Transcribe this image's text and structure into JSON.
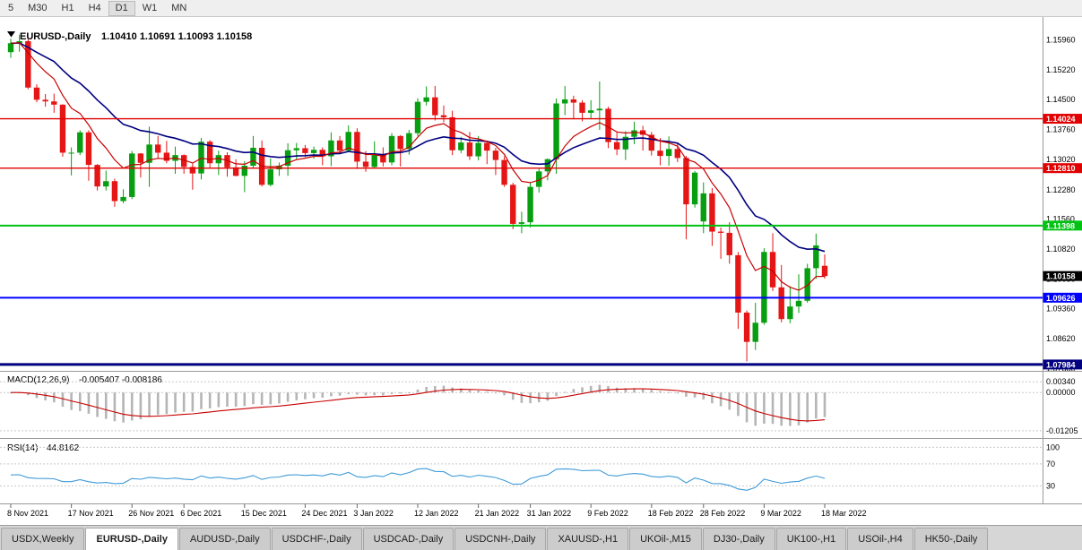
{
  "colors": {
    "bull": "#089e11",
    "bear": "#e51616",
    "border": "#9a9a9a",
    "grid": "#c9c9c9",
    "macd_bar": "#b5b5b5",
    "macd_signal": "#c80000",
    "rsi": "#3f9bd8"
  },
  "toolbar": {
    "timeframes": [
      {
        "label": "5",
        "active": false
      },
      {
        "label": "M30",
        "active": false
      },
      {
        "label": "H1",
        "active": false
      },
      {
        "label": "H4",
        "active": false
      },
      {
        "label": "D1",
        "active": true
      },
      {
        "label": "W1",
        "active": false
      },
      {
        "label": "MN",
        "active": false
      }
    ]
  },
  "chart": {
    "title": "EURUSD-,Daily",
    "ohlc": "1.10410 1.10691 1.10093 1.10158"
  },
  "chart_data": {
    "type": "candlestick",
    "symbol": "EURUSD-",
    "timeframe": "Daily",
    "ohlc_current": {
      "open": 1.1041,
      "high": 1.10691,
      "low": 1.10093,
      "close": 1.10158
    },
    "price_domain": [
      1.0785,
      1.1648
    ],
    "price_axis_ticks": [
      1.1596,
      1.1522,
      1.145,
      1.1376,
      1.1302,
      1.1228,
      1.1156,
      1.1082,
      1.1008,
      1.0936,
      1.0862,
      1.0788
    ],
    "hlines": [
      {
        "value": 1.14024,
        "label": "1.14024",
        "color": "#e00000",
        "width": 1.4
      },
      {
        "value": 1.1281,
        "label": "1.12810",
        "color": "#e00000",
        "width": 1.4
      },
      {
        "value": 1.11398,
        "label": "1.11398",
        "color": "#00c213",
        "width": 2
      },
      {
        "value": 1.09626,
        "label": "1.09626",
        "color": "#0000ff",
        "width": 2
      },
      {
        "value": 1.07984,
        "label": "1.07984",
        "color": "#000080",
        "width": 3
      }
    ],
    "current_price": {
      "value": 1.10158,
      "label": "1.10158",
      "color": "#000000"
    },
    "moving_averages": [
      {
        "name": "ma-fast",
        "period": 8,
        "color": "#c80000"
      },
      {
        "name": "ma-slow",
        "period": 20,
        "color": "#000080"
      }
    ],
    "date_labels": [
      {
        "label": "8 Nov 2021",
        "index": 0
      },
      {
        "label": "17 Nov 2021",
        "index": 7
      },
      {
        "label": "26 Nov 2021",
        "index": 14
      },
      {
        "label": "6 Dec 2021",
        "index": 20
      },
      {
        "label": "15 Dec 2021",
        "index": 27
      },
      {
        "label": "24 Dec 2021",
        "index": 34
      },
      {
        "label": "3 Jan 2022",
        "index": 40
      },
      {
        "label": "12 Jan 2022",
        "index": 47
      },
      {
        "label": "21 Jan 2022",
        "index": 54
      },
      {
        "label": "31 Jan 2022",
        "index": 60
      },
      {
        "label": "9 Feb 2022",
        "index": 67
      },
      {
        "label": "18 Feb 2022",
        "index": 74
      },
      {
        "label": "28 Feb 2022",
        "index": 80
      },
      {
        "label": "9 Mar 2022",
        "index": 87
      },
      {
        "label": "18 Mar 2022",
        "index": 94
      }
    ],
    "candles": [
      [
        1.1566,
        1.1599,
        1.1552,
        1.1588
      ],
      [
        1.1588,
        1.1609,
        1.1567,
        1.1593
      ],
      [
        1.1593,
        1.1598,
        1.1475,
        1.1479
      ],
      [
        1.1479,
        1.1487,
        1.1443,
        1.1449
      ],
      [
        1.1449,
        1.1463,
        1.1432,
        1.1445
      ],
      [
        1.1445,
        1.1464,
        1.1417,
        1.1437
      ],
      [
        1.1437,
        1.1438,
        1.1309,
        1.1319
      ],
      [
        1.1319,
        1.1332,
        1.1263,
        1.1319
      ],
      [
        1.1319,
        1.1374,
        1.1313,
        1.1369
      ],
      [
        1.1369,
        1.1374,
        1.125,
        1.1289
      ],
      [
        1.1289,
        1.1291,
        1.1226,
        1.1236
      ],
      [
        1.1236,
        1.1275,
        1.1226,
        1.1249
      ],
      [
        1.1249,
        1.1255,
        1.1186,
        1.12
      ],
      [
        1.12,
        1.1229,
        1.1195,
        1.121
      ],
      [
        1.121,
        1.1323,
        1.1205,
        1.1317
      ],
      [
        1.1317,
        1.1318,
        1.1258,
        1.1294
      ],
      [
        1.1294,
        1.1383,
        1.1235,
        1.1339
      ],
      [
        1.1339,
        1.136,
        1.1305,
        1.1319
      ],
      [
        1.1319,
        1.1348,
        1.1293,
        1.1299
      ],
      [
        1.1299,
        1.1334,
        1.1267,
        1.1313
      ],
      [
        1.1313,
        1.1315,
        1.1267,
        1.1284
      ],
      [
        1.1284,
        1.1292,
        1.1228,
        1.1268
      ],
      [
        1.1268,
        1.1355,
        1.1253,
        1.1346
      ],
      [
        1.1346,
        1.135,
        1.128,
        1.1293
      ],
      [
        1.1293,
        1.1324,
        1.1264,
        1.1313
      ],
      [
        1.1313,
        1.132,
        1.126,
        1.1283
      ],
      [
        1.1283,
        1.1303,
        1.1261,
        1.1262
      ],
      [
        1.1262,
        1.1298,
        1.1222,
        1.1287
      ],
      [
        1.1287,
        1.136,
        1.128,
        1.1331
      ],
      [
        1.1331,
        1.1349,
        1.1236,
        1.124
      ],
      [
        1.124,
        1.1305,
        1.1236,
        1.1278
      ],
      [
        1.1278,
        1.1295,
        1.1262,
        1.1287
      ],
      [
        1.1287,
        1.1342,
        1.1262,
        1.1325
      ],
      [
        1.1325,
        1.1343,
        1.1303,
        1.133
      ],
      [
        1.133,
        1.1338,
        1.1308,
        1.1318
      ],
      [
        1.1318,
        1.1334,
        1.1304,
        1.1326
      ],
      [
        1.1326,
        1.1332,
        1.1288,
        1.131
      ],
      [
        1.131,
        1.1369,
        1.1286,
        1.1349
      ],
      [
        1.1349,
        1.136,
        1.1315,
        1.1324
      ],
      [
        1.1324,
        1.1386,
        1.132,
        1.137
      ],
      [
        1.137,
        1.1379,
        1.1279,
        1.1297
      ],
      [
        1.1297,
        1.1323,
        1.1272,
        1.1284
      ],
      [
        1.1284,
        1.1347,
        1.1281,
        1.1313
      ],
      [
        1.1313,
        1.1332,
        1.1285,
        1.1295
      ],
      [
        1.1295,
        1.1367,
        1.1288,
        1.136
      ],
      [
        1.136,
        1.1362,
        1.1285,
        1.1328
      ],
      [
        1.1328,
        1.1375,
        1.1314,
        1.1367
      ],
      [
        1.1367,
        1.1453,
        1.136,
        1.1444
      ],
      [
        1.1444,
        1.1482,
        1.1435,
        1.1455
      ],
      [
        1.1455,
        1.1483,
        1.1398,
        1.1411
      ],
      [
        1.1411,
        1.1435,
        1.1394,
        1.1406
      ],
      [
        1.1406,
        1.1422,
        1.1313,
        1.1325
      ],
      [
        1.1325,
        1.1358,
        1.1318,
        1.1344
      ],
      [
        1.1344,
        1.137,
        1.1301,
        1.131
      ],
      [
        1.131,
        1.136,
        1.13,
        1.1343
      ],
      [
        1.1343,
        1.1349,
        1.1291,
        1.1324
      ],
      [
        1.1324,
        1.1331,
        1.1264,
        1.1301
      ],
      [
        1.1301,
        1.131,
        1.1235,
        1.124
      ],
      [
        1.124,
        1.1245,
        1.1131,
        1.1144
      ],
      [
        1.1144,
        1.1174,
        1.1121,
        1.1148
      ],
      [
        1.1148,
        1.1246,
        1.1135,
        1.1235
      ],
      [
        1.1235,
        1.1279,
        1.1221,
        1.1273
      ],
      [
        1.1273,
        1.1305,
        1.1251,
        1.1303
      ],
      [
        1.1303,
        1.1452,
        1.1267,
        1.144
      ],
      [
        1.144,
        1.1483,
        1.1411,
        1.145
      ],
      [
        1.145,
        1.1459,
        1.1401,
        1.1442
      ],
      [
        1.1442,
        1.1448,
        1.1396,
        1.1417
      ],
      [
        1.1417,
        1.1448,
        1.1403,
        1.1423
      ],
      [
        1.1423,
        1.1494,
        1.1375,
        1.1427
      ],
      [
        1.1427,
        1.1432,
        1.133,
        1.1345
      ],
      [
        1.1345,
        1.1369,
        1.1313,
        1.1327
      ],
      [
        1.1327,
        1.1372,
        1.1301,
        1.1358
      ],
      [
        1.1358,
        1.1395,
        1.134,
        1.1374
      ],
      [
        1.1374,
        1.1385,
        1.1324,
        1.1363
      ],
      [
        1.1363,
        1.137,
        1.1312,
        1.1324
      ],
      [
        1.1324,
        1.1355,
        1.1288,
        1.1311
      ],
      [
        1.1311,
        1.1359,
        1.1287,
        1.1328
      ],
      [
        1.1328,
        1.1342,
        1.1296,
        1.1306
      ],
      [
        1.1306,
        1.1311,
        1.1106,
        1.1192
      ],
      [
        1.1192,
        1.1274,
        1.1184,
        1.127
      ],
      [
        1.115,
        1.1246,
        1.1121,
        1.1219
      ],
      [
        1.1219,
        1.1232,
        1.109,
        1.1125
      ],
      [
        1.1125,
        1.1135,
        1.1058,
        1.1122
      ],
      [
        1.1122,
        1.1148,
        1.1046,
        1.1067
      ],
      [
        1.1067,
        1.1075,
        1.0886,
        1.0926
      ],
      [
        1.0926,
        1.0931,
        1.0806,
        1.0854
      ],
      [
        1.0854,
        1.095,
        1.0834,
        1.0901
      ],
      [
        1.0901,
        1.1084,
        1.0896,
        1.1075
      ],
      [
        1.1075,
        1.1121,
        1.0979,
        1.0988
      ],
      [
        1.0988,
        1.1043,
        1.0902,
        1.091
      ],
      [
        1.091,
        1.0991,
        1.09,
        1.0941
      ],
      [
        1.0941,
        1.102,
        1.0925,
        1.0955
      ],
      [
        1.0955,
        1.1046,
        1.095,
        1.1035
      ],
      [
        1.1035,
        1.112,
        1.1009,
        1.1091
      ],
      [
        1.1041,
        1.10691,
        1.10093,
        1.10158
      ]
    ],
    "macd": {
      "title": "MACD(12,26,9)",
      "values": "-0.005407 -0.008186",
      "params": [
        12,
        26,
        9
      ],
      "axis_ticks": [
        0.0034,
        0,
        -0.01205
      ],
      "domain": [
        -0.0138,
        0.006
      ]
    },
    "rsi": {
      "title": "RSI(14)",
      "value": "44.8162",
      "period": 14,
      "levels": [
        100,
        70,
        30
      ],
      "domain": [
        0,
        112
      ]
    }
  },
  "tabs": {
    "items": [
      {
        "label": "USDX,Weekly",
        "active": false
      },
      {
        "label": "EURUSD-,Daily",
        "active": true
      },
      {
        "label": "AUDUSD-,Daily",
        "active": false
      },
      {
        "label": "USDCHF-,Daily",
        "active": false
      },
      {
        "label": "USDCAD-,Daily",
        "active": false
      },
      {
        "label": "USDCNH-,Daily",
        "active": false
      },
      {
        "label": "XAUUSD-,H1",
        "active": false
      },
      {
        "label": "UKOil-,M15",
        "active": false
      },
      {
        "label": "DJ30-,Daily",
        "active": false
      },
      {
        "label": "UK100-,H1",
        "active": false
      },
      {
        "label": "USOil-,H4",
        "active": false
      },
      {
        "label": "HK50-,Daily",
        "active": false
      }
    ]
  }
}
